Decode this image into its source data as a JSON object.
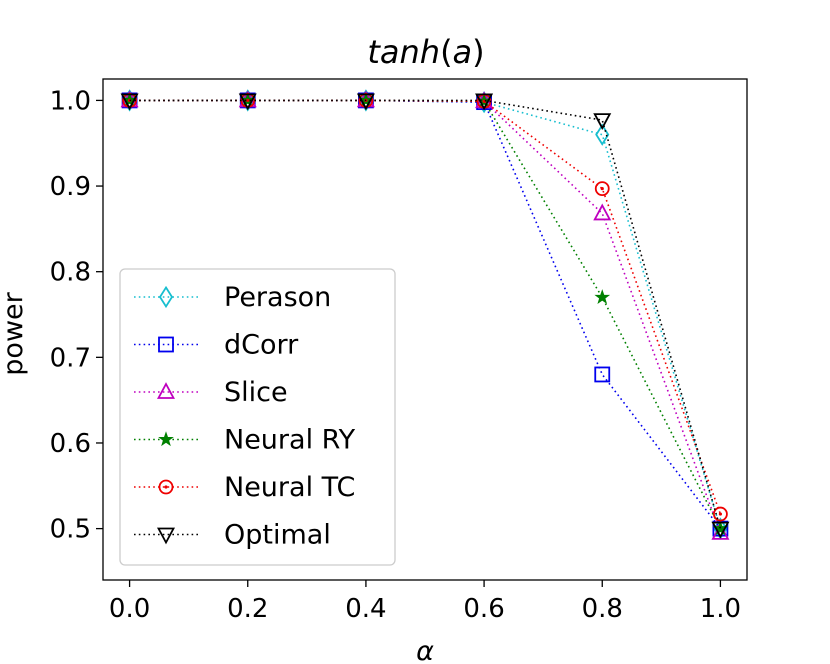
{
  "chart_data": {
    "type": "line",
    "title_main": "tanh",
    "title_paren_open": "(",
    "title_arg": "a",
    "title_paren_close": ")",
    "xlabel": "α",
    "ylabel": "power",
    "x": [
      0.0,
      0.2,
      0.4,
      0.6,
      0.8,
      1.0
    ],
    "xticks": [
      "0.0",
      "0.2",
      "0.4",
      "0.6",
      "0.8",
      "1.0"
    ],
    "yticks": [
      "0.5",
      "0.6",
      "0.7",
      "0.8",
      "0.9",
      "1.0"
    ],
    "xlim": [
      -0.045,
      1.045
    ],
    "ylim": [
      0.44,
      1.025
    ],
    "legend_position": "lower-left",
    "series": [
      {
        "name": "Perason",
        "color": "#17becf",
        "marker": "diamond",
        "values": [
          1.0,
          1.0,
          1.0,
          0.998,
          0.96,
          0.5
        ]
      },
      {
        "name": "dCorr",
        "color": "#0000ee",
        "marker": "square",
        "values": [
          1.0,
          1.0,
          1.0,
          0.998,
          0.68,
          0.5
        ]
      },
      {
        "name": "Slice",
        "color": "#bf00bf",
        "marker": "triangle-up",
        "values": [
          1.0,
          1.0,
          1.0,
          0.999,
          0.868,
          0.495
        ]
      },
      {
        "name": "Neural RY",
        "color": "#008000",
        "marker": "star",
        "values": [
          1.0,
          1.0,
          1.0,
          0.999,
          0.77,
          0.5
        ]
      },
      {
        "name": "Neural TC",
        "color": "#ee0000",
        "marker": "circle",
        "values": [
          1.0,
          1.0,
          1.0,
          0.999,
          0.897,
          0.517
        ]
      },
      {
        "name": "Optimal",
        "color": "#000000",
        "marker": "triangle-down",
        "values": [
          1.0,
          1.0,
          1.0,
          1.0,
          0.977,
          0.5
        ]
      }
    ]
  }
}
